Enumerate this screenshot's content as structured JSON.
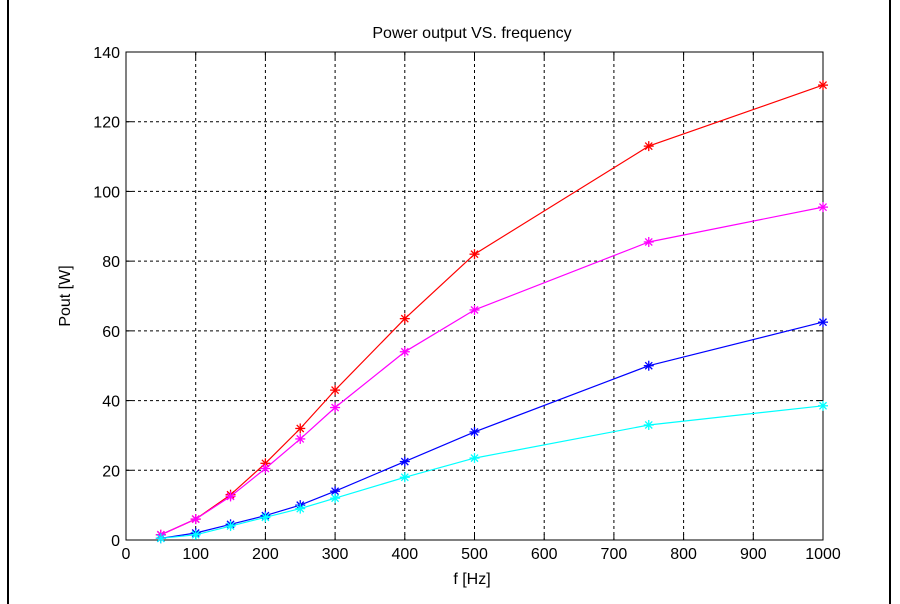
{
  "chart_data": {
    "type": "line",
    "title": "Power output VS. frequency",
    "xlabel": "f [Hz]",
    "ylabel": "Pout [W]",
    "xlim": [
      0,
      1000
    ],
    "ylim": [
      0,
      140
    ],
    "xticks": [
      0,
      100,
      200,
      300,
      400,
      500,
      600,
      700,
      800,
      900,
      1000
    ],
    "yticks": [
      0,
      20,
      40,
      60,
      80,
      100,
      120,
      140
    ],
    "grid": true,
    "marker": "asterisk",
    "x": [
      50,
      100,
      150,
      200,
      250,
      300,
      400,
      500,
      750,
      1000
    ],
    "series": [
      {
        "color": "#ff0000",
        "values": [
          1.5,
          6,
          13,
          22,
          32,
          43,
          63.5,
          82,
          113,
          130.5
        ]
      },
      {
        "color": "#ff00ff",
        "values": [
          1.5,
          6,
          12.5,
          20.5,
          29,
          38,
          54,
          66,
          85.5,
          95.5
        ]
      },
      {
        "color": "#0000ff",
        "values": [
          0.5,
          2,
          4.5,
          7,
          10,
          14,
          22.5,
          31,
          50,
          62.5
        ]
      },
      {
        "color": "#00ffff",
        "values": [
          0.5,
          1.5,
          4,
          6.5,
          9,
          12,
          18,
          23.5,
          33,
          38.5
        ]
      }
    ]
  }
}
